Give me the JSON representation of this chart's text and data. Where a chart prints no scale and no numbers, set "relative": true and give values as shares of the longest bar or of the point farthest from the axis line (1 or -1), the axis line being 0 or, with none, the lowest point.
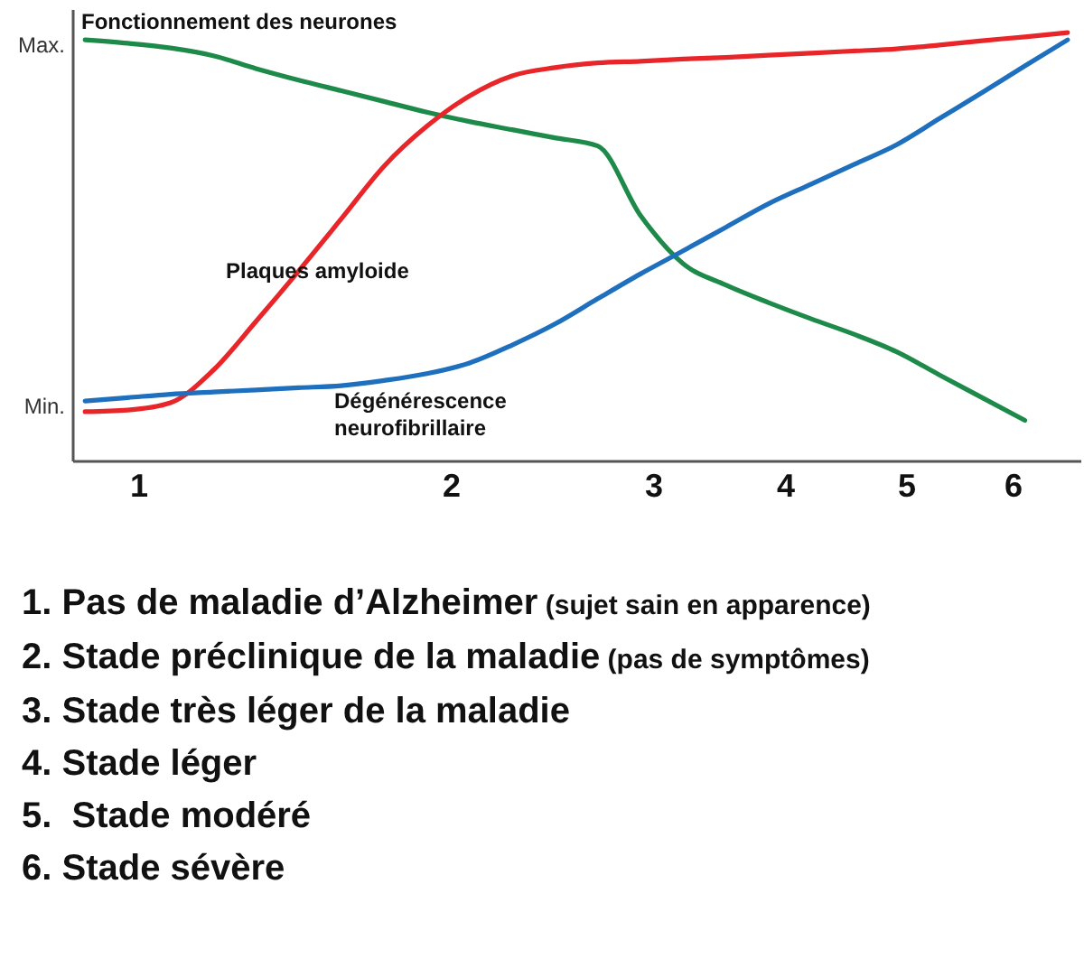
{
  "chart_data": {
    "type": "line",
    "relative": true,
    "categories": [
      null,
      null,
      null,
      null,
      null,
      null,
      null,
      null,
      null,
      null,
      null,
      null,
      null,
      null,
      null,
      null,
      null,
      null,
      null,
      null,
      null,
      null,
      null,
      null
    ],
    "grid": false,
    "legend": false,
    "marker": "none",
    "line_style": "solid",
    "series": [
      {
        "name": "Fonctionnement des neurones",
        "color": "#1e8a4a",
        "values": [
          0.983,
          0.975,
          0.964,
          0.946,
          0.916,
          0.889,
          0.864,
          0.839,
          0.814,
          0.792,
          0.773,
          0.754,
          0.735,
          0.573,
          0.46,
          0.41,
          0.369,
          0.331,
          0.295,
          0.254,
          0.2,
          0.147,
          0.094,
          null
        ]
      },
      {
        "name": "Plaques amyloide",
        "color": "#e8262a",
        "values": [
          0.114,
          0.118,
          0.135,
          0.211,
          0.325,
          0.443,
          0.565,
          0.688,
          0.781,
          0.852,
          0.899,
          0.918,
          0.929,
          0.933,
          0.938,
          0.942,
          0.947,
          0.952,
          0.957,
          0.962,
          0.971,
          0.981,
          0.99,
          1.0
        ]
      },
      {
        "name": "Dégénérescence neurofibrillaire",
        "color": "#1f6fbf",
        "values": [
          0.139,
          0.147,
          0.155,
          0.16,
          0.165,
          0.17,
          0.175,
          0.187,
          0.203,
          0.228,
          0.27,
          0.319,
          0.378,
          0.436,
          0.49,
          0.545,
          0.6,
          0.646,
          0.692,
          0.738,
          0.799,
          0.86,
          0.922,
          0.983
        ]
      }
    ],
    "annotations": [
      "Max.",
      "Min.",
      "1",
      "2",
      "3",
      "4",
      "5",
      "6",
      "1. Pas de maladie d’Alzheimer (sujet sain en apparence)",
      "2. Stade préclinique de la maladie (pas de symptômes)",
      "3. Stade très léger de la maladie",
      "4. Stade léger",
      "5.  Stade modéré",
      "6. Stade sévère"
    ]
  }
}
